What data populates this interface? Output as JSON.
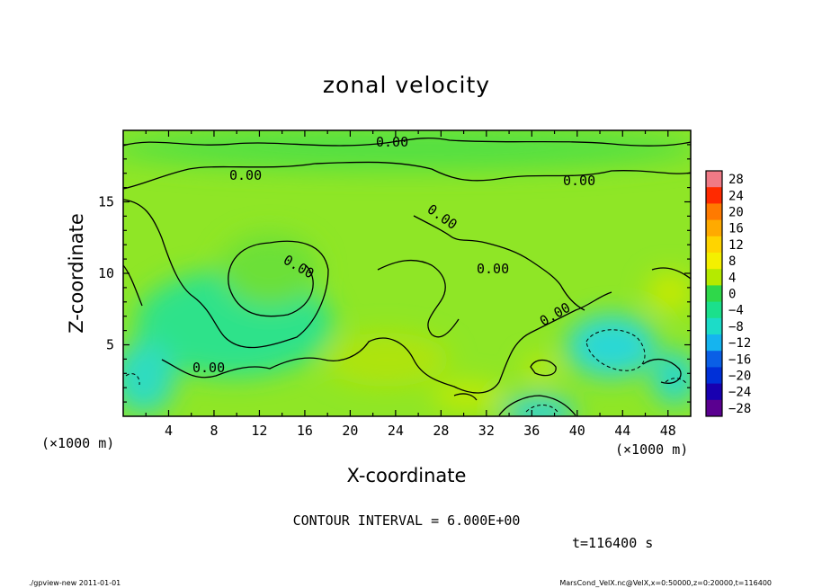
{
  "chart_data": {
    "type": "heatmap",
    "title": "zonal velocity",
    "xlabel": "X-coordinate",
    "ylabel": "Z-coordinate",
    "x_unit_left": "(×1000 m)",
    "x_unit_right": "(×1000 m)",
    "xlim": [
      0,
      50
    ],
    "ylim": [
      0,
      20
    ],
    "x_ticks": [
      4,
      8,
      12,
      16,
      20,
      24,
      28,
      32,
      36,
      40,
      44,
      48
    ],
    "y_ticks": [
      5,
      10,
      15
    ],
    "colorbar": {
      "levels": [
        28,
        24,
        20,
        16,
        12,
        8,
        4,
        0,
        -4,
        -8,
        -12,
        -16,
        -20,
        -24,
        -28
      ],
      "labels": [
        "28",
        "24",
        "20",
        "16",
        "12",
        "8",
        "4",
        "0",
        "−4",
        "−8",
        "−12",
        "−16",
        "−20",
        "−24",
        "−28"
      ],
      "colors": [
        "#f07a86",
        "#ff2a00",
        "#ff7a00",
        "#ffaa00",
        "#ffd400",
        "#f4f000",
        "#b5ea00",
        "#2fd84a",
        "#1be08c",
        "#1cdcc8",
        "#15b4ef",
        "#0a5fe6",
        "#0030d8",
        "#1800b0",
        "#5a0090"
      ]
    },
    "contour_labels": [
      "0.00",
      "0.00",
      "0.00",
      "0.00",
      "0.00",
      "0.00",
      "0.00",
      "0.00"
    ],
    "contour_interval": "CONTOUR INTERVAL = 6.000E+00",
    "time_label": "t=116400 s"
  },
  "footer": {
    "left": "./gpview-new  2011-01-01",
    "right": "MarsCond_VelX.nc@VelX,x=0:50000,z=0:20000,t=116400"
  }
}
